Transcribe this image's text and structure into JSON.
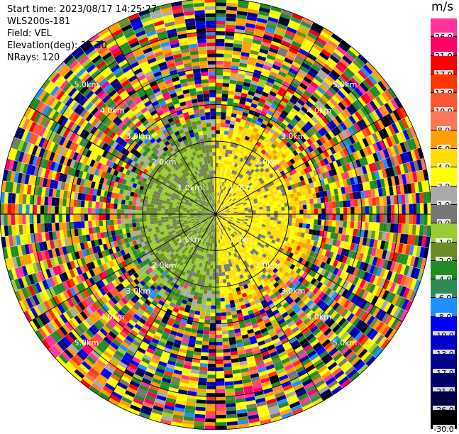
{
  "info": {
    "start_time": "Start time: 2023/08/17 14:25:27",
    "station": "WLS200s-181",
    "field": "Field: VEL",
    "elevation": "Elevation(deg): 35.30",
    "nrays": "NRays: 120"
  },
  "colorbar": {
    "unit": "m/s",
    "levels": [
      {
        "label": "26.0",
        "color": "#ff3399"
      },
      {
        "label": "21.0",
        "color": "#ff0066"
      },
      {
        "label": "17.0",
        "color": "#ff0000"
      },
      {
        "label": "13.0",
        "color": "#ff3300"
      },
      {
        "label": "10.0",
        "color": "#ff5533"
      },
      {
        "label": "8.0",
        "color": "#ff7755"
      },
      {
        "label": "6.0",
        "color": "#ffa000"
      },
      {
        "label": "4.0",
        "color": "#ffdd00"
      },
      {
        "label": "2.0",
        "color": "#ffff00"
      },
      {
        "label": "1.0",
        "color": "#aaaaaa"
      },
      {
        "label": "0.0",
        "color": "#777777"
      },
      {
        "label": "-1.0",
        "color": "#9acd32"
      },
      {
        "label": "-2.0",
        "color": "#6b8e23"
      },
      {
        "label": "-4.0",
        "color": "#228b22"
      },
      {
        "label": "-6.0",
        "color": "#2e8b57"
      },
      {
        "label": "-8.0",
        "color": "#1e90ff"
      },
      {
        "label": "-10.0",
        "color": "#0000ff"
      },
      {
        "label": "-13.0",
        "color": "#0000cd"
      },
      {
        "label": "-17.0",
        "color": "#00008b"
      },
      {
        "label": "-21.0",
        "color": "#000066"
      },
      {
        "label": "-26.0",
        "color": "#000044"
      },
      {
        "label": "-30.0",
        "color": "#000000"
      }
    ]
  },
  "chart_data": {
    "type": "heatmap",
    "field": "VEL",
    "unit": "m/s",
    "nrays": 120,
    "elevation_deg": 35.3,
    "range_rings_km": [
      1.0,
      2.0,
      3.0,
      4.0,
      5.0
    ],
    "range_ring_labels": [
      "1.0km",
      "2.0km",
      "3.0km",
      "4.0km",
      "5.0km"
    ],
    "max_range_km": 5.9,
    "inner_region": {
      "radius_km": 2.1,
      "east_half": "2.0 to 4.0",
      "west_half": "-1.0 to -2.0"
    },
    "outer_region": "mixed values from -30.0 to 26.0"
  }
}
